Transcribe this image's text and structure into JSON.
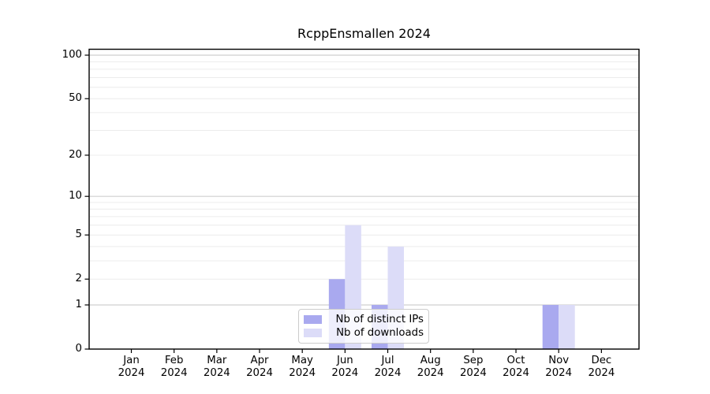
{
  "chart_data": {
    "type": "bar",
    "title": "RcppEnsmallen 2024",
    "categories": [
      "Jan",
      "Feb",
      "Mar",
      "Apr",
      "May",
      "Jun",
      "Jul",
      "Aug",
      "Sep",
      "Oct",
      "Nov",
      "Dec"
    ],
    "year_label": "2024",
    "series": [
      {
        "name": "Nb of distinct IPs",
        "color": "#a9a9ef",
        "values": [
          0,
          0,
          0,
          0,
          0,
          2,
          1,
          0,
          0,
          0,
          1,
          0
        ]
      },
      {
        "name": "Nb of downloads",
        "color": "#dcdcf8",
        "values": [
          0,
          0,
          0,
          0,
          0,
          6,
          4,
          0,
          0,
          0,
          1,
          0
        ]
      }
    ],
    "xlabel": "",
    "ylabel": "",
    "yscale": "log1p",
    "ylim": [
      0,
      100
    ],
    "yticks": [
      100,
      50,
      20,
      10,
      5,
      2,
      1,
      0
    ],
    "grid": "horizontal log-decade gridlines",
    "legend_position": "lower center"
  },
  "colors": {
    "background": "#ffffff",
    "spine": "#000000",
    "grid_minor": "#ececec",
    "grid_major": "#cfcfcf",
    "text": "#000000",
    "legend_border": "#cccccc"
  }
}
